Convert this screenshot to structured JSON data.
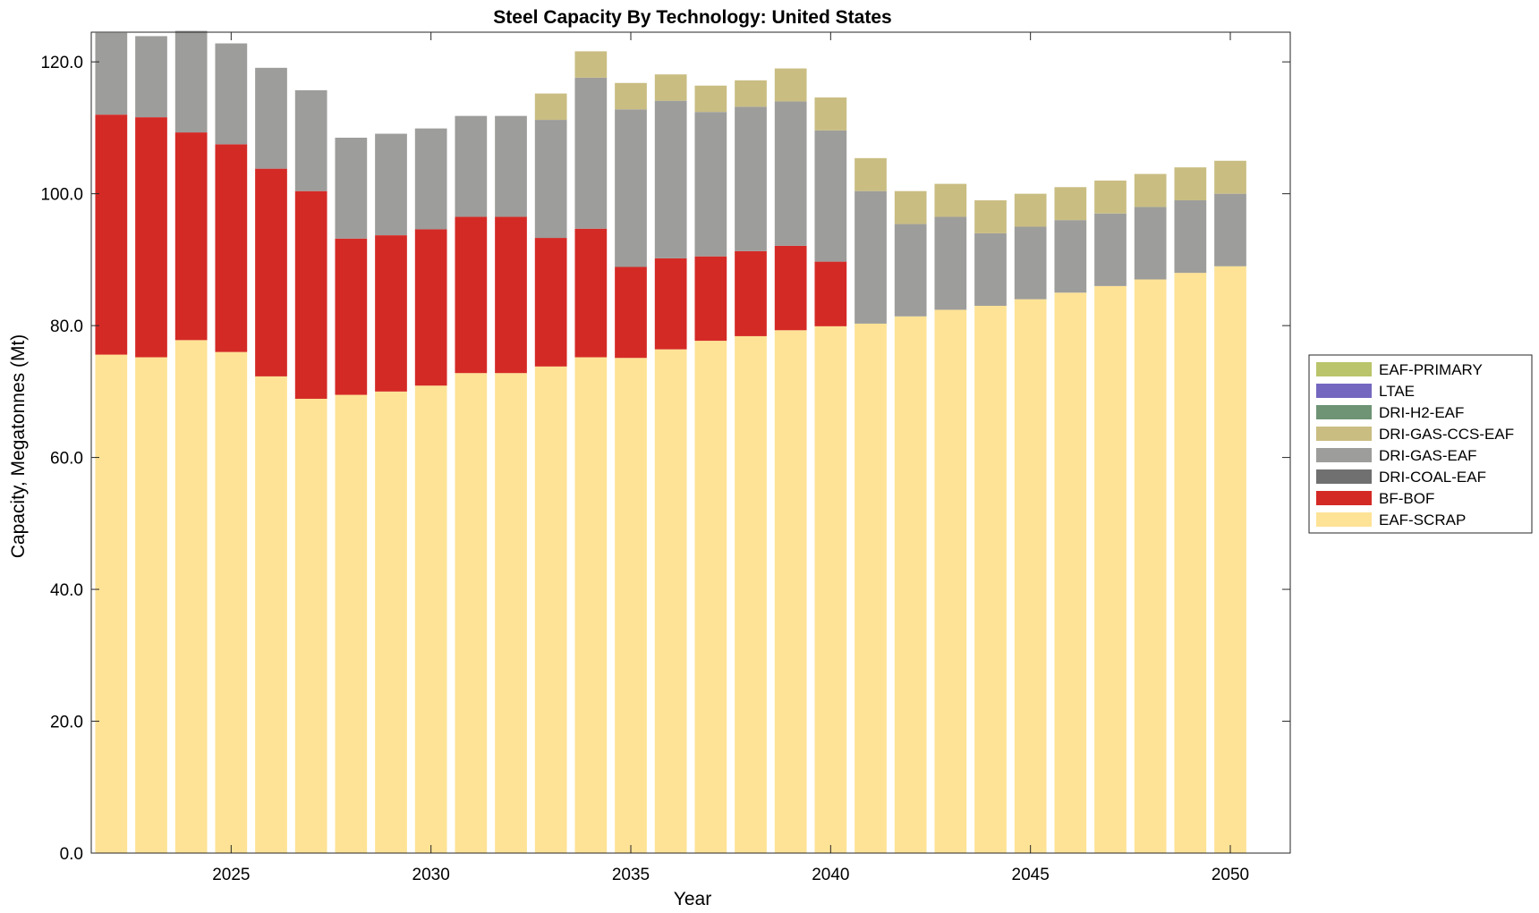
{
  "chart_data": {
    "type": "bar",
    "stacked": true,
    "title": "Steel Capacity By Technology: United States",
    "xlabel": "Year",
    "ylabel": "Capacity, Megatonnes (Mt)",
    "xlim": [
      2021.5,
      2051.5
    ],
    "ylim": [
      0,
      124.5
    ],
    "xticks": [
      2025,
      2030,
      2035,
      2040,
      2045,
      2050
    ],
    "yticks": [
      0,
      20,
      40,
      60,
      80,
      100,
      120
    ],
    "ytick_labels": [
      "0.0",
      "20.0",
      "40.0",
      "60.0",
      "80.0",
      "100.0",
      "120.0"
    ],
    "grid": false,
    "legend_position": "right",
    "categories": [
      2022,
      2023,
      2024,
      2025,
      2026,
      2027,
      2028,
      2029,
      2030,
      2031,
      2032,
      2033,
      2034,
      2035,
      2036,
      2037,
      2038,
      2039,
      2040,
      2041,
      2042,
      2043,
      2044,
      2045,
      2046,
      2047,
      2048,
      2049,
      2050
    ],
    "series": [
      {
        "name": "EAF-SCRAP",
        "color": "#FEE396",
        "values": [
          75.6,
          75.2,
          77.8,
          76.0,
          72.3,
          68.9,
          69.5,
          70.0,
          70.9,
          72.8,
          72.8,
          73.8,
          75.2,
          75.1,
          76.4,
          77.7,
          78.4,
          79.3,
          79.9,
          80.3,
          81.4,
          82.4,
          83.0,
          84.0,
          85.0,
          86.0,
          87.0,
          88.0,
          89.0
        ]
      },
      {
        "name": "BF-BOF",
        "color": "#D42A26",
        "values": [
          36.4,
          36.4,
          31.5,
          31.5,
          31.5,
          31.5,
          23.7,
          23.7,
          23.7,
          23.7,
          23.7,
          19.5,
          19.5,
          13.8,
          13.8,
          12.8,
          12.9,
          12.8,
          9.8,
          0,
          0,
          0,
          0,
          0,
          0,
          0,
          0,
          0,
          0
        ]
      },
      {
        "name": "DRI-COAL-EAF",
        "color": "#707070",
        "values": [
          0,
          0,
          0,
          0,
          0,
          0,
          0,
          0,
          0,
          0,
          0,
          0,
          0,
          0,
          0,
          0,
          0,
          0,
          0,
          0,
          0,
          0,
          0,
          0,
          0,
          0,
          0,
          0,
          0
        ]
      },
      {
        "name": "DRI-GAS-EAF",
        "color": "#9D9D9B",
        "values": [
          12.4,
          12.3,
          15.4,
          15.3,
          15.3,
          15.3,
          15.3,
          15.4,
          15.3,
          15.3,
          15.3,
          17.9,
          22.9,
          23.9,
          23.9,
          21.9,
          21.9,
          21.9,
          19.9,
          20.1,
          14.0,
          14.1,
          11.0,
          11.0,
          11.0,
          11.0,
          11.0,
          11.0,
          11.0
        ]
      },
      {
        "name": "DRI-GAS-CCS-EAF",
        "color": "#C9BD82",
        "values": [
          0,
          0,
          0,
          0,
          0,
          0,
          0,
          0,
          0,
          0,
          0,
          4.0,
          4.0,
          4.0,
          4.0,
          4.0,
          4.0,
          5.0,
          5.0,
          5.0,
          5.0,
          5.0,
          5.0,
          5.0,
          5.0,
          5.0,
          5.0,
          5.0,
          5.0
        ]
      },
      {
        "name": "DRI-H2-EAF",
        "color": "#6E9475",
        "values": [
          0,
          0,
          0,
          0,
          0,
          0,
          0,
          0,
          0,
          0,
          0,
          0,
          0,
          0,
          0,
          0,
          0,
          0,
          0,
          0,
          0,
          0,
          0,
          0,
          0,
          0,
          0,
          0,
          0
        ]
      },
      {
        "name": "LTAE",
        "color": "#7467BF",
        "values": [
          0,
          0,
          0,
          0,
          0,
          0,
          0,
          0,
          0,
          0,
          0,
          0,
          0,
          0,
          0,
          0,
          0,
          0,
          0,
          0,
          0,
          0,
          0,
          0,
          0,
          0,
          0,
          0,
          0
        ]
      },
      {
        "name": "EAF-PRIMARY",
        "color": "#BAC46A",
        "values": [
          0,
          0,
          0,
          0,
          0,
          0,
          0,
          0,
          0,
          0,
          0,
          0,
          0,
          0,
          0,
          0,
          0,
          0,
          0,
          0,
          0,
          0,
          0,
          0,
          0,
          0,
          0,
          0,
          0
        ]
      }
    ],
    "legend": [
      "EAF-PRIMARY",
      "LTAE",
      "DRI-H2-EAF",
      "DRI-GAS-CCS-EAF",
      "DRI-GAS-EAF",
      "DRI-COAL-EAF",
      "BF-BOF",
      "EAF-SCRAP"
    ]
  }
}
